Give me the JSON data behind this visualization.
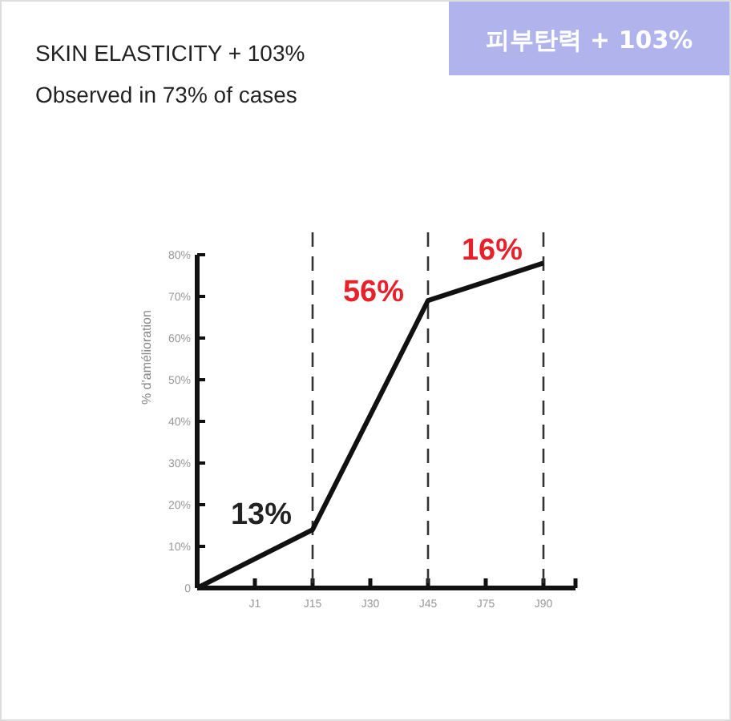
{
  "chart_data": {
    "type": "line",
    "title": "SKIN ELASTICITY + 103%",
    "subtitle": "Observed in 73% of cases",
    "ylabel": "% d'amélioration",
    "categories": [
      null,
      "J1",
      "J15",
      "J30",
      "J45",
      "J75",
      "J90"
    ],
    "series": [
      {
        "color": "#111111",
        "values": [
          0,
          null,
          14,
          null,
          69,
          null,
          78
        ]
      }
    ],
    "ylim": [
      0,
      80
    ],
    "yticks": [
      0,
      {
        "value": 10,
        "label": "10%"
      },
      {
        "value": 20,
        "label": "20%"
      },
      {
        "value": 30,
        "label": "30%"
      },
      {
        "value": 40,
        "label": "40%"
      },
      {
        "value": 50,
        "label": "50%"
      },
      {
        "value": 60,
        "label": "60%"
      },
      {
        "value": 70,
        "label": "70%"
      },
      {
        "value": 80,
        "label": "80%"
      }
    ],
    "ref_lines": [
      {
        "axis": "x",
        "value": "J15",
        "color": "#333333",
        "line_style": "dashed"
      },
      {
        "axis": "x",
        "value": "J45",
        "color": "#333333",
        "line_style": "dashed"
      },
      {
        "axis": "x",
        "value": "J90",
        "color": "#333333",
        "line_style": "dashed"
      }
    ],
    "annotations": [
      "피부탄력 + 103%",
      "13%",
      "56%",
      "16%"
    ],
    "marker": "none",
    "line_style": "solid",
    "grid": false
  }
}
